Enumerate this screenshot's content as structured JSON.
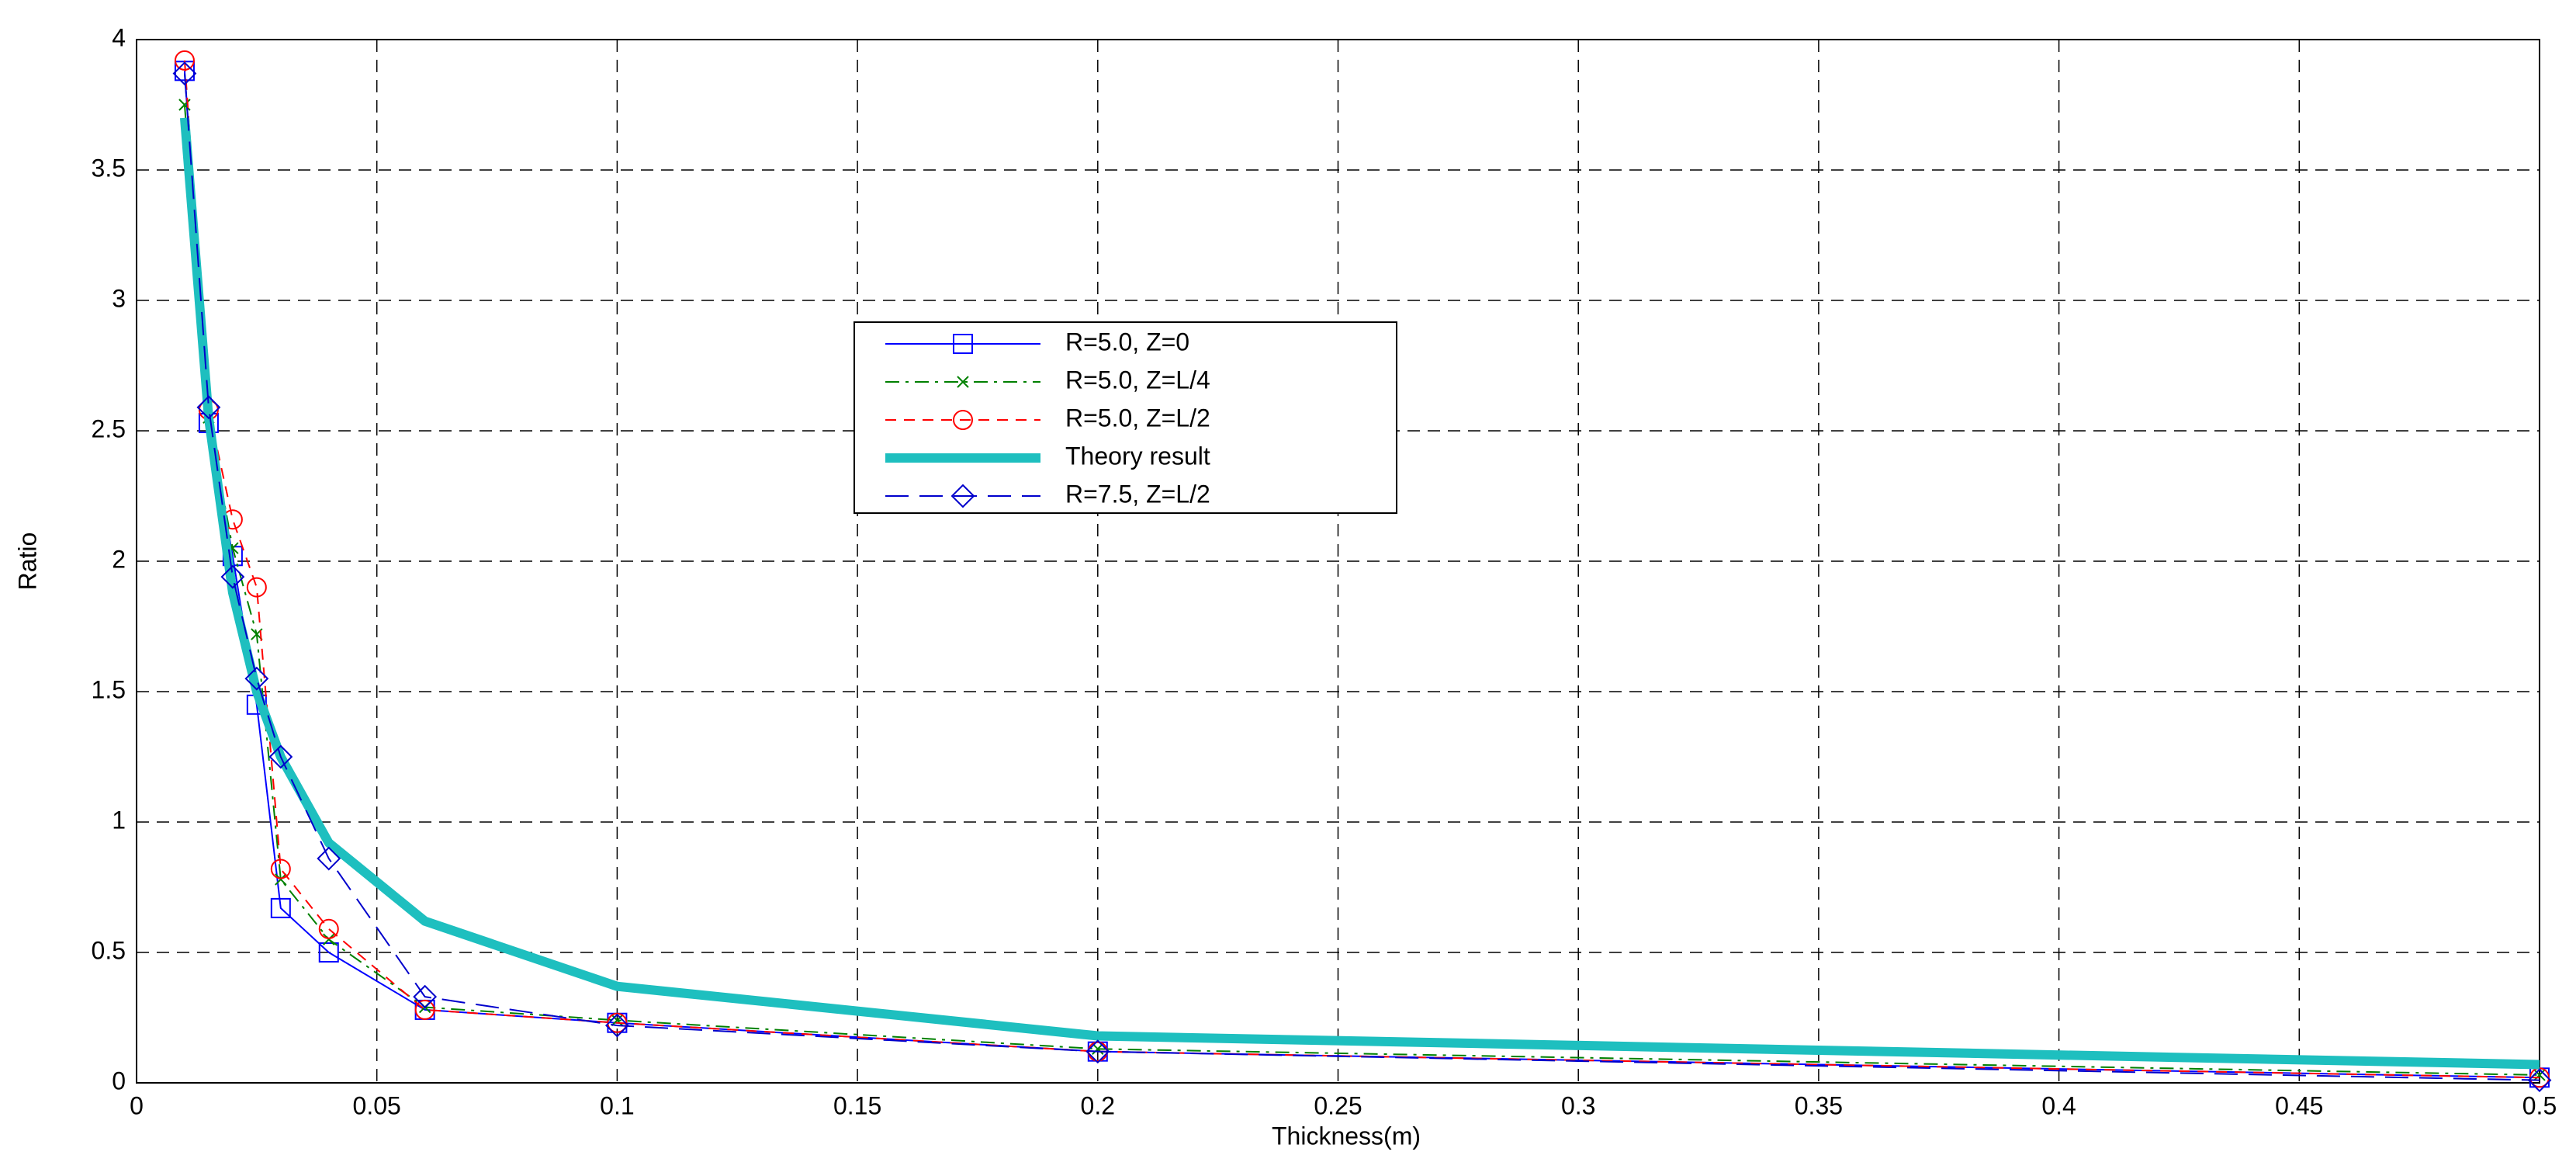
{
  "chart_data": {
    "type": "line",
    "x_label": "Thickness(m)",
    "y_label": "Ratio",
    "x": [
      0.01,
      0.015,
      0.02,
      0.025,
      0.03,
      0.04,
      0.06,
      0.1,
      0.2,
      0.5
    ],
    "series": [
      {
        "name": "R=5.0, Z=0",
        "color": "#0000ff",
        "marker": "square",
        "dash": "solid",
        "width": 1,
        "values": [
          3.88,
          2.53,
          2.02,
          1.45,
          0.67,
          0.5,
          0.28,
          0.23,
          0.12,
          0.02
        ]
      },
      {
        "name": "R=5.0, Z=L/4",
        "color": "#008000",
        "marker": "x",
        "dash": "dashdot",
        "width": 1,
        "values": [
          3.75,
          2.55,
          2.05,
          1.72,
          0.78,
          0.55,
          0.29,
          0.24,
          0.13,
          0.03
        ]
      },
      {
        "name": "R=5.0, Z=L/2",
        "color": "#ff0000",
        "marker": "circle",
        "dash": "dashed",
        "width": 1,
        "values": [
          3.92,
          2.58,
          2.16,
          1.9,
          0.82,
          0.59,
          0.28,
          0.23,
          0.12,
          0.02
        ]
      },
      {
        "name": "Theory result",
        "color": "#1ebfbf",
        "marker": "none",
        "dash": "solid",
        "width": 6,
        "values": [
          3.7,
          2.55,
          1.88,
          1.5,
          1.25,
          0.92,
          0.62,
          0.37,
          0.18,
          0.07
        ]
      },
      {
        "name": "R=7.5, Z=L/2",
        "color": "#0000cc",
        "marker": "diamond",
        "dash": "longdash",
        "width": 1,
        "values": [
          3.87,
          2.59,
          1.94,
          1.55,
          1.25,
          0.86,
          0.33,
          0.22,
          0.12,
          0.01
        ]
      }
    ],
    "xlim": [
      0,
      0.5
    ],
    "xticks": [
      0,
      0.05,
      0.1,
      0.15,
      0.2,
      0.25,
      0.3,
      0.35,
      0.4,
      0.45,
      0.5
    ],
    "ylim": [
      0,
      4
    ],
    "yticks": [
      0,
      0.5,
      1,
      1.5,
      2,
      2.5,
      3,
      3.5,
      4
    ],
    "grid": true
  }
}
